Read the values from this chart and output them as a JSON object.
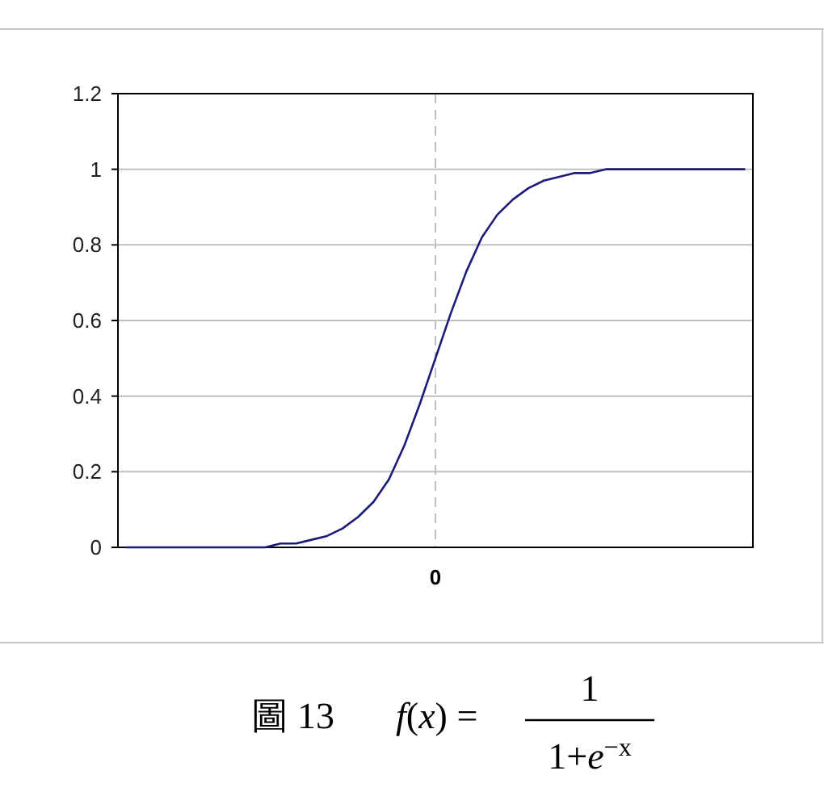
{
  "chart_data": {
    "type": "line",
    "categories": [
      null,
      null,
      null,
      null,
      null,
      null,
      null,
      null,
      null,
      null,
      null,
      null,
      null,
      null,
      null,
      null,
      null,
      null,
      null,
      null,
      "0",
      null,
      null,
      null,
      null,
      null,
      null,
      null,
      null,
      null,
      null,
      null,
      null,
      null,
      null,
      null,
      null,
      null,
      null,
      null,
      null
    ],
    "series": [
      {
        "color": "#1c1c78",
        "values": [
          0,
          0,
          0,
          0,
          0,
          0,
          0,
          0,
          0,
          0,
          0.01,
          0.01,
          0.02,
          0.03,
          0.05,
          0.08,
          0.12,
          0.18,
          0.27,
          0.38,
          0.5,
          0.62,
          0.73,
          0.82,
          0.88,
          0.92,
          0.95,
          0.97,
          0.98,
          0.99,
          0.99,
          1,
          1,
          1,
          1,
          1,
          1,
          1,
          1,
          1,
          1
        ]
      }
    ],
    "ylim": [
      0,
      1.2
    ],
    "yticks": [
      0,
      0.2,
      0.4,
      0.6,
      0.8,
      1,
      1.2
    ],
    "grid": "y",
    "marker": "none",
    "line_style": "solid",
    "ref_lines": [
      {
        "axis": "x",
        "value": "0",
        "color": "#c0c0c0",
        "line_style": "dashed"
      }
    ],
    "annotations": [
      "圖 13",
      "*f*(*x*) =",
      "1",
      "1+*e*$^{−x}$"
    ]
  }
}
